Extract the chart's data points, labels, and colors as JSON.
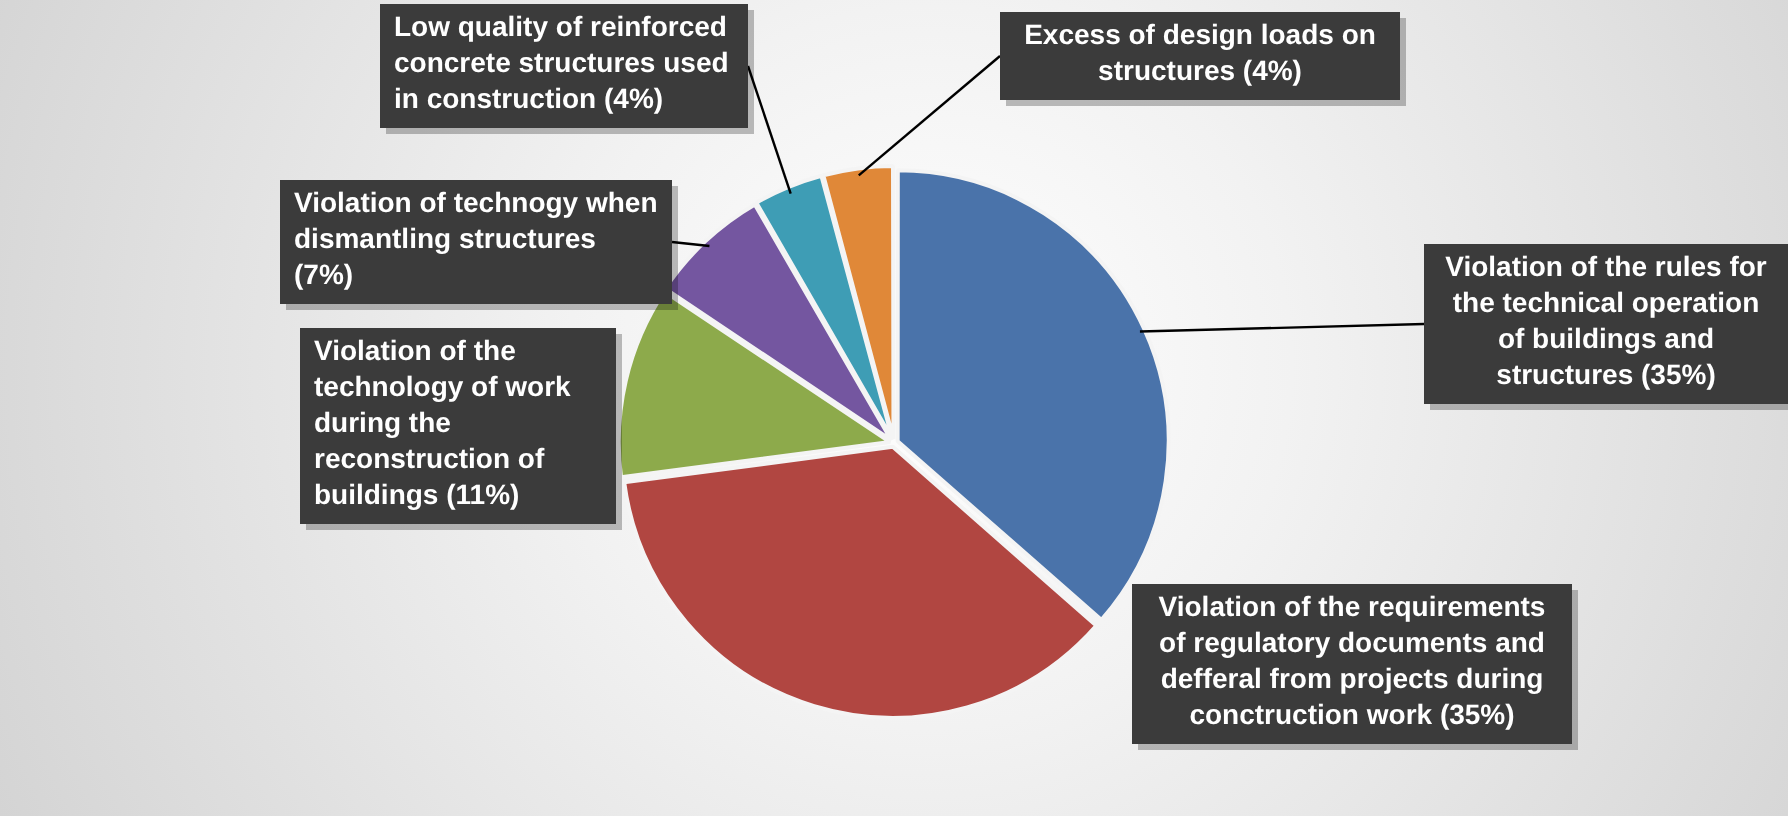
{
  "chart_data": {
    "type": "pie",
    "categories": [
      "Violation of the rules for the technical operation of buildings and structures",
      "Violation of the requirements of regulatory documents and defferal from projects during conctruction work",
      "Violation of the technology of work during the reconstruction of buildings",
      "Violation of technogy when dismantling structures",
      "Low quality of reinforced concrete structures used in construction",
      "Excess of design loads on structures"
    ],
    "values": [
      35,
      35,
      11,
      7,
      4,
      4
    ],
    "value_labels": [
      "(35%)",
      "(35%)",
      "(11%)",
      "(7%)",
      "(4%)",
      "(4%)"
    ],
    "colors": [
      "#4a73aa",
      "#b14641",
      "#8daa4b",
      "#7456a0",
      "#3e9db5",
      "#e08838"
    ],
    "legend": false
  }
}
